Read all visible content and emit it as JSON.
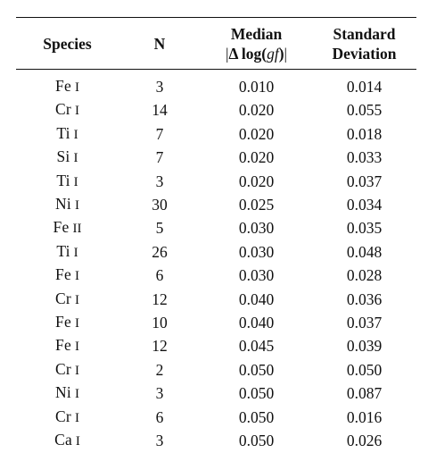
{
  "table": {
    "headers": {
      "species": "Species",
      "n": "N",
      "median_line1": "Median",
      "median_abs_left": "|",
      "median_delta": "Δ",
      "median_log": " log(",
      "median_gf": "gf",
      "median_close": ")",
      "median_abs_right": "|",
      "std_line1": "Standard",
      "std_line2": "Deviation"
    },
    "rows": [
      {
        "element": "Fe",
        "ion": "I",
        "n": "3",
        "median": "0.010",
        "std": "0.014"
      },
      {
        "element": "Cr",
        "ion": "I",
        "n": "14",
        "median": "0.020",
        "std": "0.055"
      },
      {
        "element": "Ti",
        "ion": "I",
        "n": "7",
        "median": "0.020",
        "std": "0.018"
      },
      {
        "element": "Si",
        "ion": "I",
        "n": "7",
        "median": "0.020",
        "std": "0.033"
      },
      {
        "element": "Ti",
        "ion": "I",
        "n": "3",
        "median": "0.020",
        "std": "0.037"
      },
      {
        "element": "Ni",
        "ion": "I",
        "n": "30",
        "median": "0.025",
        "std": "0.034"
      },
      {
        "element": "Fe",
        "ion": "II",
        "n": "5",
        "median": "0.030",
        "std": "0.035"
      },
      {
        "element": "Ti",
        "ion": "I",
        "n": "26",
        "median": "0.030",
        "std": "0.048"
      },
      {
        "element": "Fe",
        "ion": "I",
        "n": "6",
        "median": "0.030",
        "std": "0.028"
      },
      {
        "element": "Cr",
        "ion": "I",
        "n": "12",
        "median": "0.040",
        "std": "0.036"
      },
      {
        "element": "Fe",
        "ion": "I",
        "n": "10",
        "median": "0.040",
        "std": "0.037"
      },
      {
        "element": "Fe",
        "ion": "I",
        "n": "12",
        "median": "0.045",
        "std": "0.039"
      },
      {
        "element": "Cr",
        "ion": "I",
        "n": "2",
        "median": "0.050",
        "std": "0.050"
      },
      {
        "element": "Ni",
        "ion": "I",
        "n": "3",
        "median": "0.050",
        "std": "0.087"
      },
      {
        "element": "Cr",
        "ion": "I",
        "n": "6",
        "median": "0.050",
        "std": "0.016"
      },
      {
        "element": "Ca",
        "ion": "I",
        "n": "3",
        "median": "0.050",
        "std": "0.026"
      }
    ]
  }
}
